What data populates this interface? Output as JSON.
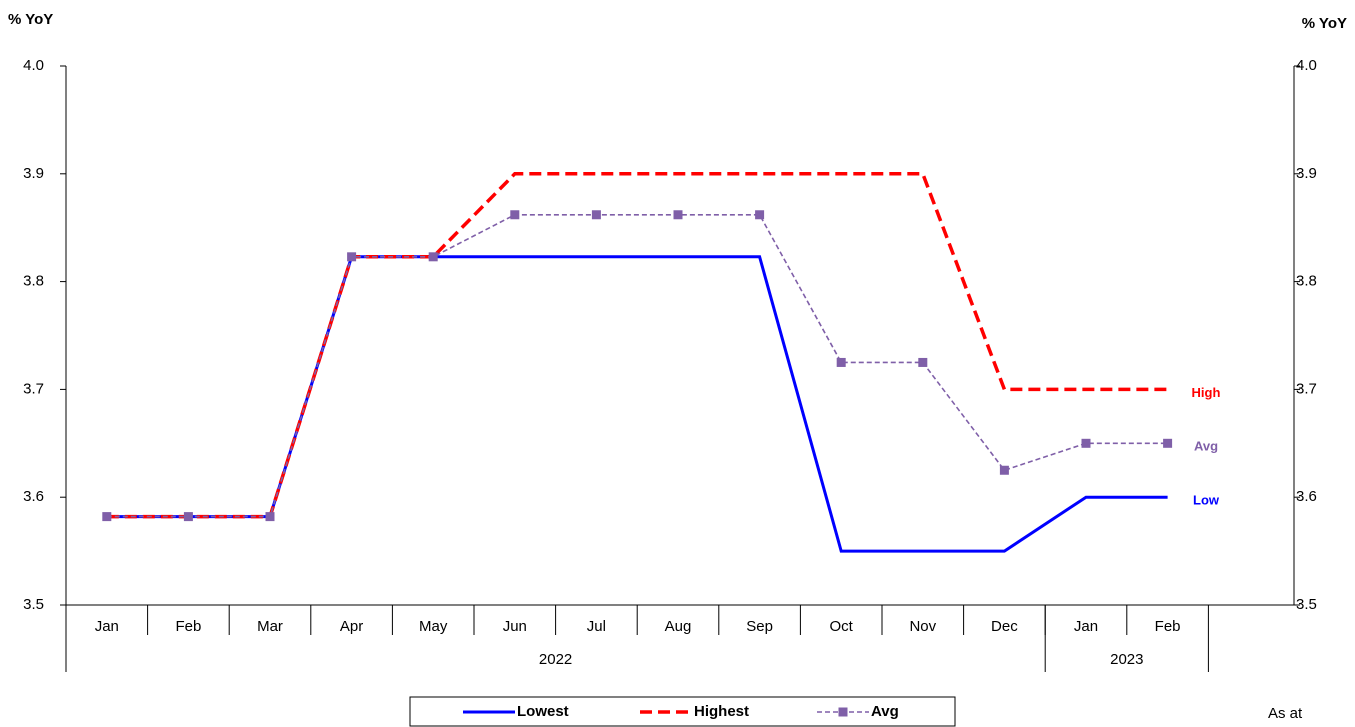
{
  "chart_data": {
    "type": "line",
    "y_label": "% YoY",
    "y2_label": "% YoY",
    "categories": [
      "Jan",
      "Feb",
      "Mar",
      "Apr",
      "May",
      "Jun",
      "Jul",
      "Aug",
      "Sep",
      "Oct",
      "Nov",
      "Dec",
      "Jan",
      "Feb"
    ],
    "groups": [
      {
        "label": "2022",
        "span": 12
      },
      {
        "label": "2023",
        "span": 2
      }
    ],
    "series": [
      {
        "name": "Lowest",
        "color": "#0000ff",
        "line_style": "solid",
        "end_label": "Low",
        "values": [
          3.582,
          3.582,
          3.582,
          3.823,
          3.823,
          3.823,
          3.823,
          3.823,
          3.823,
          3.55,
          3.55,
          3.55,
          3.6,
          3.6
        ]
      },
      {
        "name": "Highest",
        "color": "#ff0000",
        "line_style": "dashed",
        "end_label": "High",
        "values": [
          3.582,
          3.582,
          3.582,
          3.823,
          3.823,
          3.9,
          3.9,
          3.9,
          3.9,
          3.9,
          3.9,
          3.7,
          3.7,
          3.7
        ]
      },
      {
        "name": "Avg",
        "color": "#7f5fa8",
        "line_style": "dotted",
        "marker": "square",
        "end_label": "Avg",
        "values": [
          3.582,
          3.582,
          3.582,
          3.823,
          3.823,
          3.862,
          3.862,
          3.862,
          3.862,
          3.725,
          3.725,
          3.625,
          3.65,
          3.65
        ]
      }
    ],
    "ylim": [
      3.5,
      4.0
    ],
    "yticks": [
      3.5,
      3.6,
      3.7,
      3.8,
      3.9,
      {
        "value": 4.0,
        "label": "4.0"
      }
    ],
    "y2lim": [
      3.5,
      4.0
    ],
    "y2ticks": [
      3.5,
      3.6,
      3.7,
      3.8,
      3.9,
      {
        "value": 4.0,
        "label": "4.0"
      }
    ],
    "note": "As at"
  }
}
